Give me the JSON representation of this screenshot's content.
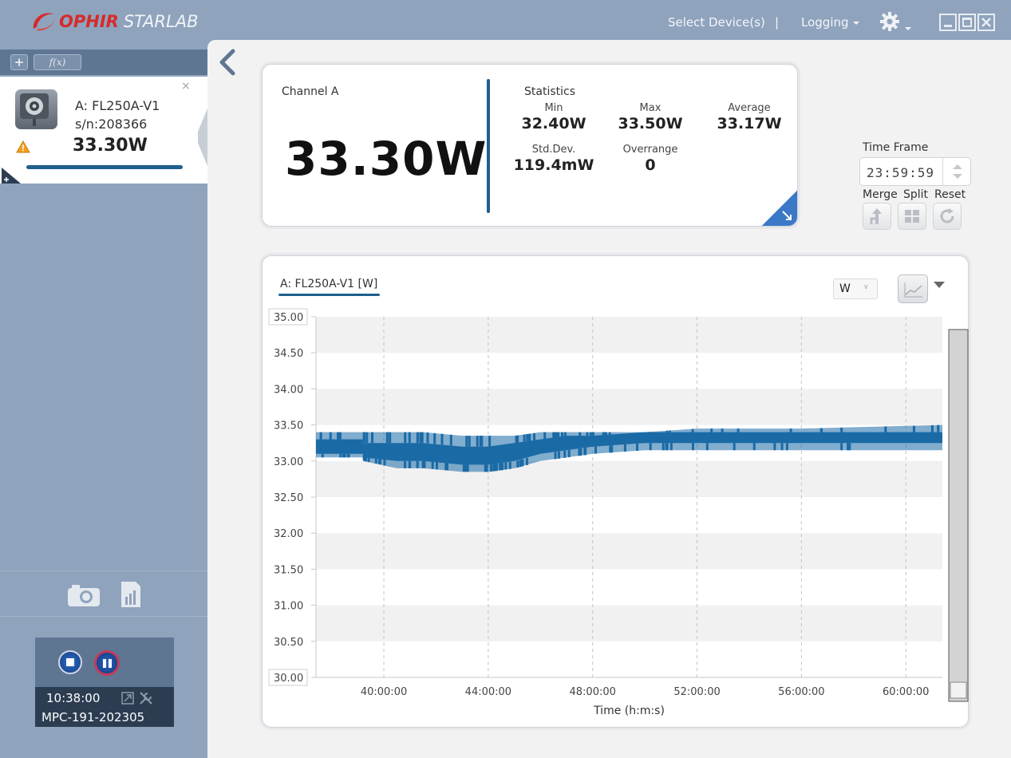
{
  "app": {
    "brand": "OPHIR",
    "product": "STARLAB",
    "menu": {
      "select_devices": "Select Device(s)",
      "separator": "|",
      "logging": "Logging"
    },
    "window_controls": [
      "minimize-icon",
      "maximize-icon",
      "close-icon"
    ]
  },
  "sidebar": {
    "toolbar": {
      "add_label": "+",
      "fx_label": "f(x)"
    },
    "device": {
      "name": "A: FL250A-V1",
      "serial": "s/n:208366",
      "value": "33.30W",
      "close_label": "×",
      "icons": [
        "sensor-icon",
        "warning-icon",
        "close-icon",
        "expand-corner-icon"
      ]
    },
    "actions": [
      "camera-icon",
      "report-icon"
    ],
    "player": {
      "time": "10:38:00",
      "id": "MPC-191-202305",
      "icons": [
        "stop-icon",
        "pause-icon",
        "export-icon",
        "settings-tools-icon"
      ]
    }
  },
  "channel": {
    "label": "Channel A",
    "value": "33.30W",
    "statistics_title": "Statistics",
    "stats": {
      "min": {
        "label": "Min",
        "value": "32.40W"
      },
      "max": {
        "label": "Max",
        "value": "33.50W"
      },
      "average": {
        "label": "Average",
        "value": "33.17W"
      },
      "std_dev": {
        "label": "Std.Dev.",
        "value": "119.4mW"
      },
      "overrange": {
        "label": "Overrange",
        "value": "0"
      }
    }
  },
  "time_frame": {
    "label": "Time Frame",
    "value": "23:59:59",
    "buttons": {
      "merge": "Merge",
      "split": "Split",
      "reset": "Reset"
    }
  },
  "chart_panel": {
    "legend": "A: FL250A-V1 [W]",
    "unit": "W",
    "accent_color": "#1f5f8e",
    "series_color": "#1a6aa6"
  },
  "chart_data": {
    "type": "line",
    "xlabel": "Time (h:m:s)",
    "ylabel": "",
    "ylim": [
      30.0,
      35.0
    ],
    "y_ticks": [
      "35.00",
      "34.50",
      "34.00",
      "33.50",
      "33.00",
      "32.50",
      "32.00",
      "31.50",
      "31.00",
      "30.50",
      "30.00"
    ],
    "x_ticks": [
      "40:00:00",
      "44:00:00",
      "48:00:00",
      "52:00:00",
      "56:00:00",
      "60:00:00"
    ],
    "xlim_hours": [
      37.4,
      61.4
    ],
    "series": [
      {
        "name": "A: FL250A-V1",
        "color": "#1a6aa6",
        "x_hours": [
          37.4,
          39.2,
          39.2,
          40.5,
          41.5,
          43.0,
          44.0,
          45.0,
          46.0,
          47.0,
          48.0,
          50.0,
          52.0,
          56.0,
          61.4
        ],
        "y_min": [
          33.05,
          33.05,
          33.0,
          32.9,
          32.9,
          32.85,
          32.85,
          32.9,
          33.0,
          33.05,
          33.1,
          33.15,
          33.15,
          33.15,
          33.15
        ],
        "y_max": [
          33.4,
          33.4,
          33.4,
          33.4,
          33.4,
          33.35,
          33.35,
          33.35,
          33.4,
          33.4,
          33.4,
          33.4,
          33.45,
          33.45,
          33.5
        ],
        "band_low": [
          33.1,
          33.1,
          33.05,
          33.0,
          33.0,
          32.95,
          32.95,
          33.0,
          33.1,
          33.15,
          33.2,
          33.25,
          33.25,
          33.25,
          33.25
        ],
        "band_high": [
          33.3,
          33.3,
          33.25,
          33.25,
          33.25,
          33.2,
          33.2,
          33.25,
          33.3,
          33.35,
          33.35,
          33.4,
          33.4,
          33.4,
          33.4
        ]
      }
    ],
    "grid": true,
    "legend_position": "top-left"
  }
}
